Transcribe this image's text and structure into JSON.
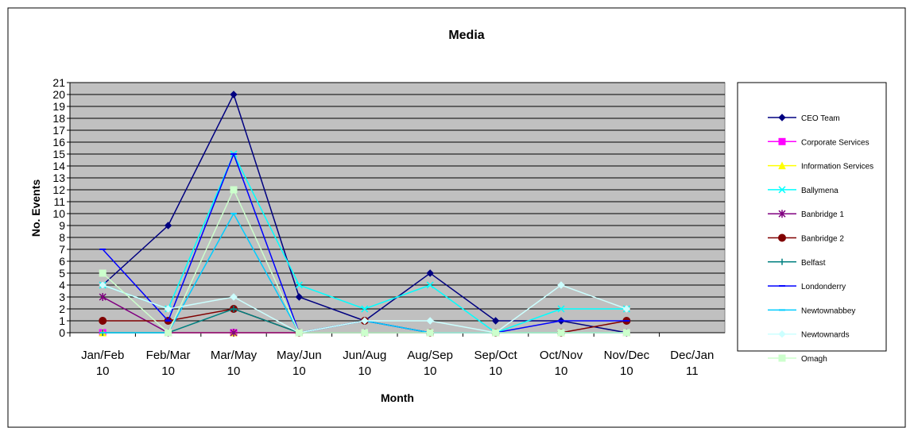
{
  "chart_data": {
    "type": "line",
    "title": "Media",
    "x_label": "Month",
    "y_label": "No. Events",
    "categories": [
      "Jan/Feb 10",
      "Feb/Mar 10",
      "Mar/May 10",
      "May/Jun 10",
      "Jun/Aug 10",
      "Aug/Sep 10",
      "Sep/Oct 10",
      "Oct/Nov 10",
      "Nov/Dec 10",
      "Dec/Jan 11"
    ],
    "ylim": [
      0,
      21
    ],
    "yticks": [
      0,
      1,
      2,
      3,
      4,
      5,
      6,
      7,
      8,
      9,
      10,
      11,
      12,
      13,
      14,
      15,
      16,
      17,
      18,
      19,
      20,
      21
    ],
    "grid": true,
    "legend": "right",
    "series": [
      {
        "name": "CEO Team",
        "color": "#000080",
        "marker": "diamond",
        "values": [
          4,
          9,
          20,
          3,
          1,
          5,
          1,
          1,
          0,
          null
        ]
      },
      {
        "name": "Corporate Services",
        "color": "#FF00FF",
        "marker": "square",
        "values": [
          0,
          0,
          0,
          0,
          0,
          0,
          0,
          0,
          0,
          null
        ]
      },
      {
        "name": "Information Services",
        "color": "#FFFF00",
        "marker": "triangle",
        "values": [
          0,
          0,
          0,
          0,
          0,
          0,
          0,
          0,
          0,
          null
        ]
      },
      {
        "name": "Ballymena",
        "color": "#00FFFF",
        "marker": "x",
        "values": [
          4,
          2,
          15,
          4,
          2,
          4,
          0,
          2,
          2,
          null
        ]
      },
      {
        "name": "Banbridge 1",
        "color": "#800080",
        "marker": "star",
        "values": [
          3,
          0,
          0,
          0,
          0,
          0,
          0,
          0,
          0,
          null
        ]
      },
      {
        "name": "Banbridge 2",
        "color": "#800000",
        "marker": "circle",
        "values": [
          1,
          1,
          2,
          0,
          1,
          0,
          0,
          0,
          1,
          null
        ]
      },
      {
        "name": "Belfast",
        "color": "#008080",
        "marker": "plus",
        "values": [
          0,
          0,
          2,
          0,
          0,
          0,
          0,
          0,
          0,
          null
        ]
      },
      {
        "name": "Londonderry",
        "color": "#0000FF",
        "marker": "dash",
        "values": [
          7,
          1,
          15,
          0,
          1,
          0,
          0,
          1,
          1,
          null
        ]
      },
      {
        "name": "Newtownabbey",
        "color": "#00CCFF",
        "marker": "dash",
        "values": [
          0,
          0,
          10,
          0,
          1,
          0,
          0,
          0,
          0,
          null
        ]
      },
      {
        "name": "Newtownards",
        "color": "#CCFFFF",
        "marker": "diamond",
        "values": [
          4,
          2,
          3,
          0,
          1,
          1,
          0,
          4,
          2,
          null
        ]
      },
      {
        "name": "Omagh",
        "color": "#CCFFCC",
        "marker": "square",
        "values": [
          5,
          0,
          12,
          0,
          0,
          0,
          0,
          0,
          0,
          null
        ]
      }
    ]
  }
}
